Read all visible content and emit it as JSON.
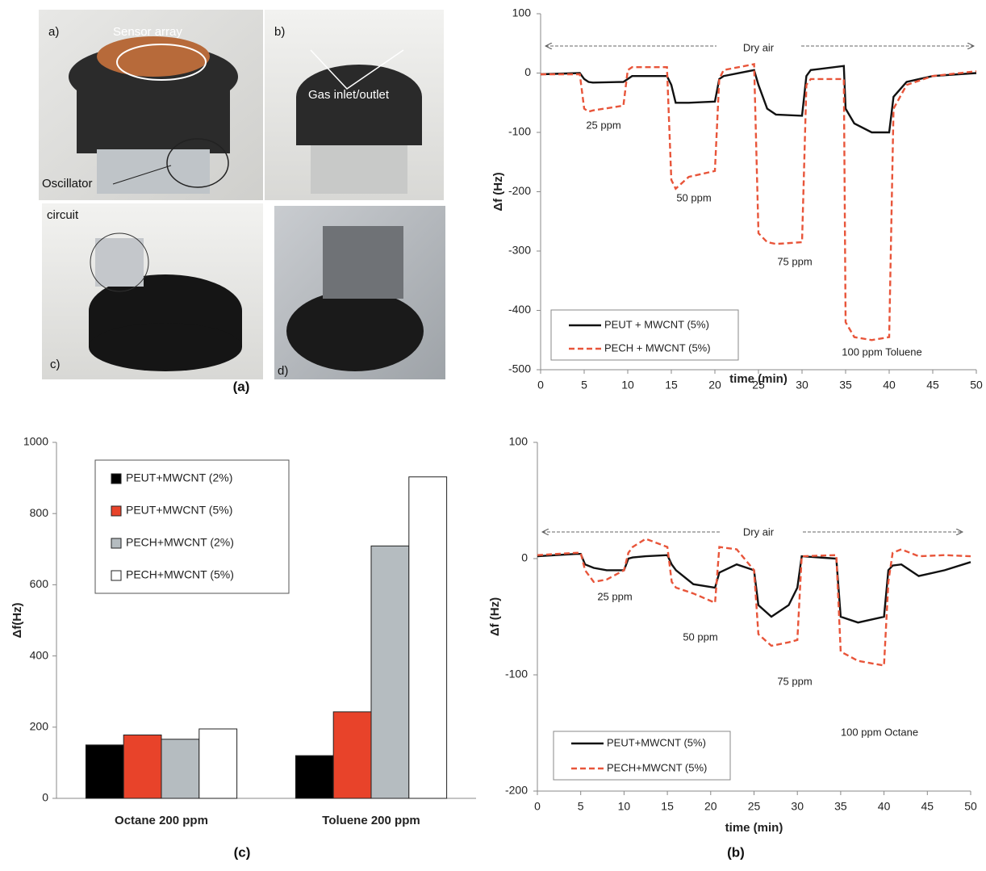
{
  "figure": {
    "panel_labels": [
      "(a)",
      "(c)",
      "(b)"
    ]
  },
  "photos": {
    "labels": [
      "a)",
      "Sensor array",
      "Oscillator",
      "b)",
      "Gas inlet/outlet",
      "circuit",
      "c)",
      "d)"
    ]
  },
  "chart_data": [
    {
      "type": "line",
      "x_label": "time (min)",
      "y_label": "Δf (Hz)",
      "annotations": [
        "Dry air",
        "25 ppm",
        "50 ppm",
        "75 ppm",
        "100 ppm Toluene"
      ],
      "x": [
        0,
        4.5,
        5,
        5.5,
        6,
        9.5,
        10,
        10.5,
        14.5,
        15,
        15.5,
        17,
        20,
        20.5,
        21,
        24.5,
        25,
        26,
        27,
        30,
        30.5,
        31,
        34.8,
        35,
        36,
        38,
        40,
        40.5,
        42,
        45,
        50
      ],
      "series": [
        {
          "name": "PEUT + MWCNT (5%)",
          "color": "#111111",
          "line_style": "solid",
          "values": [
            -2,
            0,
            -10,
            -15,
            -16,
            -15,
            -10,
            -5,
            -5,
            -20,
            -50,
            -50,
            -48,
            -10,
            -5,
            5,
            -20,
            -60,
            -70,
            -72,
            -5,
            5,
            12,
            -60,
            -85,
            -100,
            -100,
            -40,
            -15,
            -5,
            0
          ]
        },
        {
          "name": "PECH + MWCNT (5%)",
          "color": "#e8553a",
          "line_style": "dashed",
          "values": [
            -2,
            -2,
            -60,
            -65,
            -63,
            -55,
            5,
            10,
            10,
            -180,
            -195,
            -175,
            -165,
            -10,
            5,
            15,
            -270,
            -285,
            -288,
            -285,
            -20,
            -10,
            -10,
            -420,
            -445,
            -450,
            -445,
            -60,
            -20,
            -5,
            3
          ]
        }
      ],
      "xlim": [
        0,
        50
      ],
      "xticks": [
        0,
        5,
        10,
        15,
        20,
        25,
        30,
        35,
        40,
        45,
        50
      ],
      "ylim": [
        -500,
        100
      ],
      "yticks": [
        -500,
        -400,
        -300,
        -200,
        -100,
        0,
        100
      ]
    },
    {
      "type": "bar",
      "y_label": "Δf(Hz)",
      "categories": [
        "Octane 200 ppm",
        "Toluene 200 ppm"
      ],
      "series": [
        {
          "name": "PEUT+MWCNT (2%)",
          "color": "#000000",
          "values": [
            150,
            120
          ]
        },
        {
          "name": "PEUT+MWCNT (5%)",
          "color": "#e8432a",
          "values": [
            178,
            243
          ]
        },
        {
          "name": "PECH+MWCNT (2%)",
          "color": "#b5bcc0",
          "values": [
            166,
            709
          ]
        },
        {
          "name": "PECH+MWCNT (5%)",
          "color": "#ffffff",
          "values": [
            195,
            903
          ]
        }
      ],
      "ylim": [
        0,
        1000
      ],
      "yticks": [
        0,
        200,
        400,
        600,
        800,
        1000
      ]
    },
    {
      "type": "line",
      "x_label": "time (min)",
      "y_label": "Δf (Hz)",
      "annotations": [
        "Dry air",
        "25 ppm",
        "50 ppm",
        "75 ppm",
        "100 ppm Octane"
      ],
      "x": [
        0,
        4.5,
        5,
        5.5,
        6.5,
        8,
        10,
        10.5,
        11,
        12.5,
        15,
        15.5,
        16,
        18,
        20.5,
        21,
        23,
        25,
        25.5,
        27,
        29,
        30,
        30.5,
        34.5,
        35,
        37,
        40,
        40.5,
        41,
        42,
        44,
        47,
        50
      ],
      "series": [
        {
          "name": "PEUT+MWCNT (5%)",
          "color": "#111111",
          "line_style": "solid",
          "values": [
            2,
            4,
            4,
            -5,
            -8,
            -10,
            -10,
            0,
            1,
            2,
            3,
            -5,
            -10,
            -22,
            -25,
            -12,
            -5,
            -10,
            -40,
            -50,
            -40,
            -25,
            2,
            0,
            -50,
            -55,
            -50,
            -10,
            -6,
            -5,
            -15,
            -10,
            -3
          ]
        },
        {
          "name": "PECH+MWCNT (5%)",
          "color": "#e8553a",
          "line_style": "dashed",
          "values": [
            3,
            5,
            5,
            -10,
            -20,
            -18,
            -10,
            5,
            10,
            17,
            10,
            -20,
            -25,
            -30,
            -38,
            10,
            8,
            -10,
            -65,
            -75,
            -72,
            -70,
            2,
            3,
            -80,
            -88,
            -92,
            -20,
            5,
            8,
            2,
            3,
            2
          ]
        }
      ],
      "xlim": [
        0,
        50
      ],
      "xticks": [
        0,
        5,
        10,
        15,
        20,
        25,
        30,
        35,
        40,
        45,
        50
      ],
      "ylim": [
        -200,
        100
      ],
      "yticks": [
        -200,
        -100,
        0,
        100
      ]
    }
  ]
}
